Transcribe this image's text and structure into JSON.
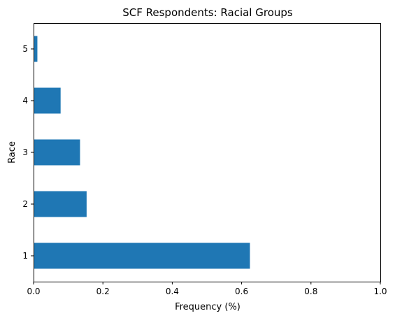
{
  "chart_data": {
    "type": "bar",
    "orientation": "horizontal",
    "title": "SCF Respondents: Racial Groups",
    "xlabel": "Frequency (%)",
    "ylabel": "Race",
    "categories": [
      "1",
      "2",
      "3",
      "4",
      "5"
    ],
    "values": [
      0.624,
      0.153,
      0.134,
      0.078,
      0.011
    ],
    "xlim": [
      0,
      1.0
    ],
    "xticks": [
      "0.0",
      "0.2",
      "0.4",
      "0.6",
      "0.8",
      "1.0"
    ],
    "grid": false,
    "legend": "none",
    "bar_color": "#1f77b4"
  }
}
